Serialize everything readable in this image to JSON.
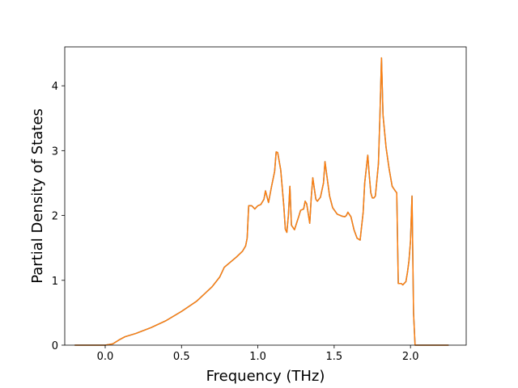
{
  "chart_data": {
    "type": "line",
    "title": "",
    "xlabel": "Frequency (THz)",
    "ylabel": "Partial Density of States",
    "xlim": [
      -0.265,
      2.365
    ],
    "ylim": [
      0,
      4.6
    ],
    "xticks": [
      0.0,
      0.5,
      1.0,
      1.5,
      2.0
    ],
    "xtick_labels": [
      "0.0",
      "0.5",
      "1.0",
      "1.5",
      "2.0"
    ],
    "yticks": [
      0,
      1,
      2,
      3,
      4
    ],
    "ytick_labels": [
      "0",
      "1",
      "2",
      "3",
      "4"
    ],
    "grid": false,
    "legend": "none",
    "series": [
      {
        "color": "#ff7f0e",
        "underlay_color": "#1f77b4",
        "x": [
          -0.2,
          0.0,
          0.05,
          0.09,
          0.13,
          0.2,
          0.3,
          0.4,
          0.5,
          0.6,
          0.7,
          0.75,
          0.78,
          0.82,
          0.86,
          0.9,
          0.92,
          0.93,
          0.94,
          0.96,
          0.98,
          1.0,
          1.02,
          1.04,
          1.05,
          1.07,
          1.09,
          1.11,
          1.12,
          1.13,
          1.15,
          1.17,
          1.18,
          1.19,
          1.2,
          1.21,
          1.22,
          1.24,
          1.27,
          1.28,
          1.3,
          1.31,
          1.32,
          1.34,
          1.35,
          1.36,
          1.38,
          1.39,
          1.41,
          1.43,
          1.44,
          1.45,
          1.47,
          1.49,
          1.52,
          1.55,
          1.57,
          1.58,
          1.59,
          1.61,
          1.63,
          1.65,
          1.67,
          1.69,
          1.7,
          1.72,
          1.73,
          1.74,
          1.75,
          1.76,
          1.77,
          1.78,
          1.79,
          1.8,
          1.81,
          1.82,
          1.83,
          1.84,
          1.86,
          1.88,
          1.9,
          1.91,
          1.92,
          1.94,
          1.95,
          1.97,
          1.98,
          1.99,
          2.0,
          2.01,
          2.02,
          2.03,
          2.04,
          2.1,
          2.25
        ],
        "y": [
          0.0,
          0.0,
          0.02,
          0.08,
          0.13,
          0.18,
          0.27,
          0.38,
          0.52,
          0.68,
          0.9,
          1.05,
          1.2,
          1.28,
          1.36,
          1.45,
          1.53,
          1.65,
          2.15,
          2.15,
          2.1,
          2.15,
          2.17,
          2.25,
          2.38,
          2.2,
          2.45,
          2.68,
          2.98,
          2.97,
          2.7,
          2.15,
          1.79,
          1.74,
          2.0,
          2.45,
          1.85,
          1.78,
          2.0,
          2.08,
          2.1,
          2.22,
          2.18,
          1.88,
          2.28,
          2.58,
          2.25,
          2.22,
          2.28,
          2.5,
          2.83,
          2.65,
          2.3,
          2.12,
          2.02,
          1.99,
          1.98,
          2.0,
          2.05,
          1.98,
          1.78,
          1.65,
          1.62,
          2.05,
          2.5,
          2.93,
          2.62,
          2.35,
          2.27,
          2.27,
          2.3,
          2.55,
          2.8,
          3.55,
          4.43,
          3.55,
          3.3,
          3.05,
          2.72,
          2.45,
          2.38,
          2.35,
          0.95,
          0.95,
          0.93,
          0.98,
          1.12,
          1.3,
          1.6,
          2.3,
          0.5,
          0.0,
          0.0,
          0.0,
          0.0
        ]
      }
    ]
  }
}
